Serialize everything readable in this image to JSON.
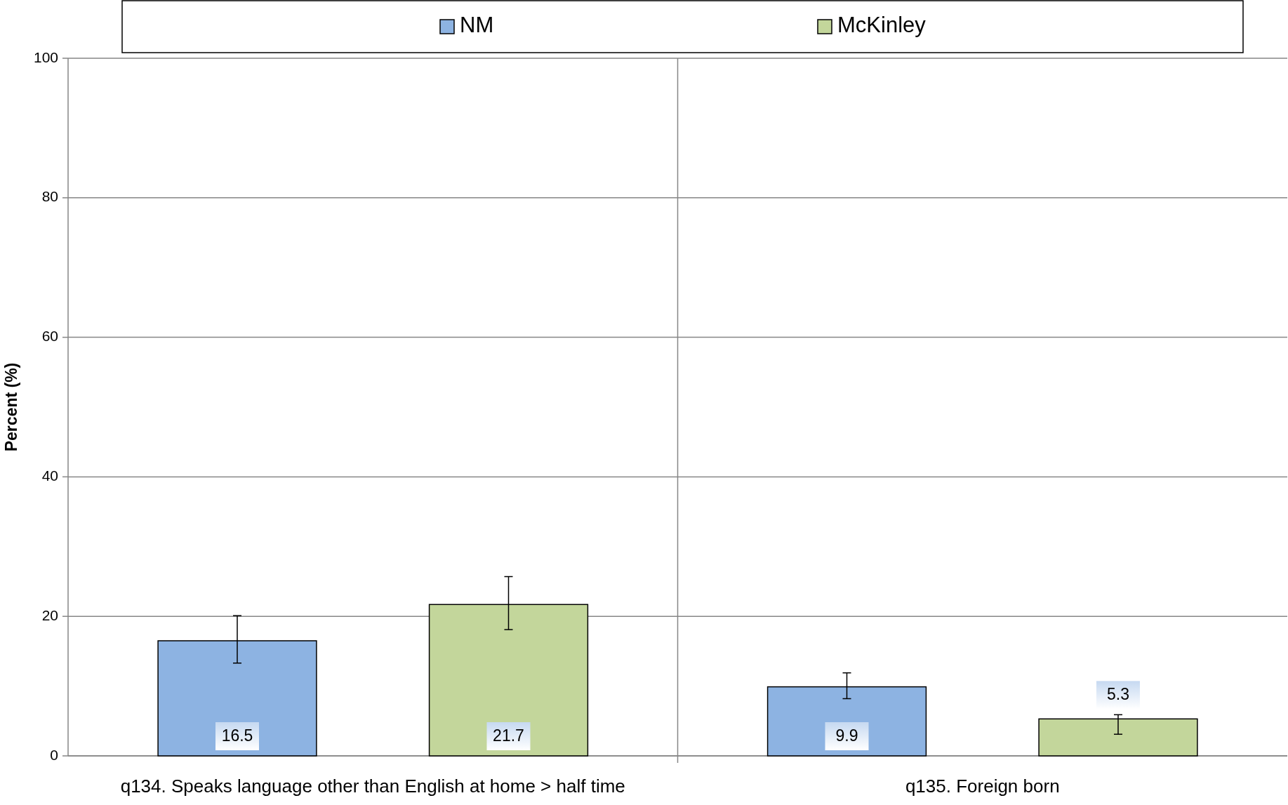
{
  "chart_data": {
    "type": "bar",
    "ylabel": "Percent (%)",
    "categories": [
      "q134. Speaks language other than English at home > half time",
      "q135. Foreign born"
    ],
    "series": [
      {
        "name": "NM",
        "color": "#8db3e2",
        "values": [
          16.5,
          9.9
        ],
        "errors": [
          [
            13.3,
            20.1
          ],
          [
            8.2,
            11.9
          ]
        ]
      },
      {
        "name": "McKinley",
        "color": "#c3d69b",
        "values": [
          21.7,
          5.3
        ],
        "errors": [
          [
            18.1,
            25.7
          ],
          [
            3.1,
            5.9
          ]
        ]
      }
    ],
    "ylim": [
      0,
      100
    ],
    "yticks": [
      0,
      20,
      40,
      60,
      80,
      100
    ],
    "grid": true,
    "legend": "top",
    "data_labels": true
  }
}
